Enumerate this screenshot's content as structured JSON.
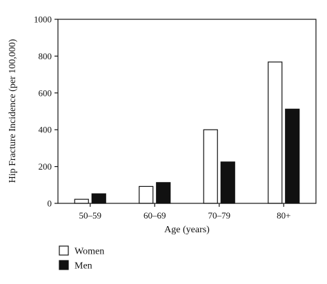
{
  "chart_data": {
    "type": "bar",
    "xlabel": "Age (years)",
    "ylabel": "Hip Fracture Incidence (per 100,000)",
    "ylim": [
      0,
      1000
    ],
    "yticks": [
      "0",
      "200",
      "400",
      "600",
      "800",
      "1000"
    ],
    "categories": [
      "50–59",
      "60–69",
      "70–79",
      "80+"
    ],
    "series": [
      {
        "name": "Women",
        "values": [
          22,
          92,
          400,
          768
        ],
        "color": "#ffffff"
      },
      {
        "name": "Men",
        "values": [
          52,
          113,
          225,
          512
        ],
        "color": "#111111"
      }
    ],
    "grid": false,
    "legend_position": "bottom-left"
  }
}
